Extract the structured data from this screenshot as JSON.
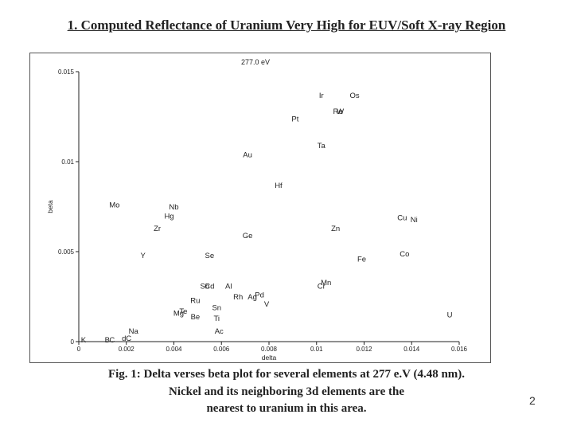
{
  "slide": {
    "title": "1. Computed Reflectance of Uranium Very High for EUV/Soft X-ray Region",
    "caption_lines": [
      "Fig. 1: Delta verses beta plot for several elements at 277 e.V (4.48 nm).",
      "Nickel and its neighboring 3d elements are the",
      "nearest to uranium in this area."
    ],
    "page_number": "2"
  },
  "chart_data": {
    "type": "scatter",
    "title": "277.0 eV",
    "xlabel": "delta",
    "ylabel": "beta",
    "xlim": [
      0,
      0.016
    ],
    "ylim": [
      0,
      0.015
    ],
    "x_ticks": [
      "0",
      "0.002",
      "0.004",
      "0.006",
      "0.008",
      "0.01",
      "0.012",
      "0.014",
      "0.016"
    ],
    "y_ticks": [
      "0",
      "0.005",
      "0.01",
      "0.015"
    ],
    "grid": false,
    "points": [
      {
        "label": "Ir",
        "x": 0.0102,
        "y": 0.0137
      },
      {
        "label": "Os",
        "x": 0.0116,
        "y": 0.0137
      },
      {
        "label": "Re",
        "x": 0.0109,
        "y": 0.0128
      },
      {
        "label": "W",
        "x": 0.011,
        "y": 0.0128
      },
      {
        "label": "Pt",
        "x": 0.0091,
        "y": 0.0124
      },
      {
        "label": "Ta",
        "x": 0.0102,
        "y": 0.0109
      },
      {
        "label": "Au",
        "x": 0.0071,
        "y": 0.0104
      },
      {
        "label": "Hf",
        "x": 0.0084,
        "y": 0.0087
      },
      {
        "label": "Mo",
        "x": 0.0015,
        "y": 0.0076
      },
      {
        "label": "Nb",
        "x": 0.004,
        "y": 0.0075
      },
      {
        "label": "Hg",
        "x": 0.0038,
        "y": 0.007
      },
      {
        "label": "Cu",
        "x": 0.0136,
        "y": 0.0069
      },
      {
        "label": "Ni",
        "x": 0.0141,
        "y": 0.0068
      },
      {
        "label": "Zr",
        "x": 0.0033,
        "y": 0.0063
      },
      {
        "label": "Zn",
        "x": 0.0108,
        "y": 0.0063
      },
      {
        "label": "Ge",
        "x": 0.0071,
        "y": 0.0059
      },
      {
        "label": "Y",
        "x": 0.0027,
        "y": 0.0048
      },
      {
        "label": "Se",
        "x": 0.0055,
        "y": 0.0048
      },
      {
        "label": "Co",
        "x": 0.0137,
        "y": 0.0049
      },
      {
        "label": "Fe",
        "x": 0.0119,
        "y": 0.0046
      },
      {
        "label": "Mn",
        "x": 0.0104,
        "y": 0.0033
      },
      {
        "label": "Cr",
        "x": 0.0102,
        "y": 0.0031
      },
      {
        "label": "Sb",
        "x": 0.0053,
        "y": 0.0031
      },
      {
        "label": "Cd",
        "x": 0.0055,
        "y": 0.0031
      },
      {
        "label": "Al",
        "x": 0.0063,
        "y": 0.0031
      },
      {
        "label": "Rh",
        "x": 0.0067,
        "y": 0.0025
      },
      {
        "label": "Ag",
        "x": 0.0073,
        "y": 0.0025
      },
      {
        "label": "Pd",
        "x": 0.0076,
        "y": 0.0026
      },
      {
        "label": "V",
        "x": 0.0079,
        "y": 0.0021
      },
      {
        "label": "Ru",
        "x": 0.0049,
        "y": 0.0023
      },
      {
        "label": "Sn",
        "x": 0.0058,
        "y": 0.0019
      },
      {
        "label": "Ti",
        "x": 0.0058,
        "y": 0.0013
      },
      {
        "label": "Mg",
        "x": 0.0042,
        "y": 0.0016
      },
      {
        "label": "Te",
        "x": 0.0044,
        "y": 0.0017
      },
      {
        "label": "Be",
        "x": 0.0049,
        "y": 0.0014
      },
      {
        "label": "U",
        "x": 0.0156,
        "y": 0.0015
      },
      {
        "label": "Ac",
        "x": 0.0059,
        "y": 0.0006
      },
      {
        "label": "Na",
        "x": 0.0023,
        "y": 0.0006
      },
      {
        "label": "K",
        "x": 0.0002,
        "y": 0.0001
      },
      {
        "label": "B",
        "x": 0.0012,
        "y": 0.0001
      },
      {
        "label": "C",
        "x": 0.0014,
        "y": 0.0001
      },
      {
        "label": "d",
        "x": 0.0019,
        "y": 0.0002
      },
      {
        "label": "C",
        "x": 0.0021,
        "y": 0.0002
      }
    ]
  }
}
